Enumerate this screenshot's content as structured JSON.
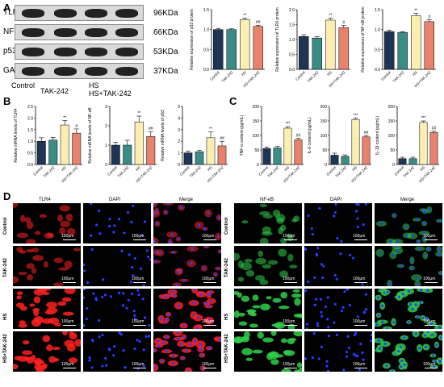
{
  "panels": {
    "A": "A",
    "B": "B",
    "C": "C",
    "D": "D"
  },
  "western_blot": {
    "rows": [
      {
        "protein": "TLR4",
        "kda": "96KDa"
      },
      {
        "protein": "NF-κB",
        "kda": "66KDa"
      },
      {
        "protein": "p53",
        "kda": "53KDa"
      },
      {
        "protein": "GAPDH",
        "kda": "37KDa"
      }
    ],
    "lanes": [
      "Control",
      "TAK-242",
      "HS",
      "HS+TAK-242"
    ]
  },
  "colors": {
    "control": "#1f3557",
    "tak242": "#3a8c85",
    "hs": "#fbeeb0",
    "hs_tak242": "#e9826c",
    "tlr4_stain": "#ff2020",
    "nfkb_stain": "#2fcf4a",
    "dapi": "#2a3cff"
  },
  "chart_data": [
    {
      "id": "A1",
      "type": "bar",
      "categories": [
        "Control",
        "TAK-242",
        "HS",
        "HS+TAK-242"
      ],
      "values": [
        1.0,
        1.0,
        1.25,
        1.08
      ],
      "errors": [
        0.03,
        0.02,
        0.04,
        0.03
      ],
      "sig": [
        "",
        "",
        "**",
        "##"
      ],
      "ylabel": "Relative expression of p53 protein",
      "ylim": [
        0,
        1.5
      ],
      "yticks": [
        "0.0",
        "0.5",
        "1.0",
        "1.5"
      ]
    },
    {
      "id": "A2",
      "type": "bar",
      "categories": [
        "Control",
        "TAK-242",
        "HS",
        "HS+TAK-242"
      ],
      "values": [
        1.1,
        1.05,
        1.65,
        1.4
      ],
      "errors": [
        0.06,
        0.05,
        0.06,
        0.07
      ],
      "sig": [
        "",
        "",
        "**",
        "#"
      ],
      "ylabel": "Relative expression of TLR4 protein",
      "ylim": [
        0,
        2.0
      ],
      "yticks": [
        "0.0",
        "0.5",
        "1.0",
        "1.5",
        "2.0"
      ]
    },
    {
      "id": "A3",
      "type": "bar",
      "categories": [
        "Control",
        "TAK-242",
        "HS",
        "HS+TAK-242"
      ],
      "values": [
        0.95,
        0.93,
        1.35,
        1.2
      ],
      "errors": [
        0.03,
        0.02,
        0.06,
        0.05
      ],
      "sig": [
        "",
        "",
        "**",
        "#"
      ],
      "ylabel": "Relative expression of NF-κB protein",
      "ylim": [
        0,
        1.5
      ],
      "yticks": [
        "0.0",
        "0.5",
        "1.0",
        "1.5"
      ]
    },
    {
      "id": "B1",
      "type": "bar",
      "categories": [
        "Control",
        "TAK-242",
        "HS",
        "HS+TAK-242"
      ],
      "values": [
        1.0,
        1.05,
        1.7,
        1.35
      ],
      "errors": [
        0.15,
        0.12,
        0.2,
        0.18
      ],
      "sig": [
        "",
        "",
        "**",
        "#"
      ],
      "ylabel": "Relative mRNA levels of TLR4",
      "ylim": [
        0,
        2.5
      ],
      "yticks": [
        "0.0",
        "0.5",
        "1.0",
        "1.5",
        "2.0",
        "2.5"
      ]
    },
    {
      "id": "B2",
      "type": "bar",
      "categories": [
        "Control",
        "TAK-242",
        "HS",
        "HS+TAK-242"
      ],
      "values": [
        1.0,
        1.0,
        2.2,
        1.45
      ],
      "errors": [
        0.15,
        0.25,
        0.3,
        0.25
      ],
      "sig": [
        "",
        "",
        "**",
        "##"
      ],
      "ylabel": "Relative mRNA levels of NF-κB",
      "ylim": [
        0,
        3
      ],
      "yticks": [
        "0",
        "1",
        "2",
        "3"
      ]
    },
    {
      "id": "B3",
      "type": "bar",
      "categories": [
        "Control",
        "TAK-242",
        "HS",
        "HS+TAK-242"
      ],
      "values": [
        1.0,
        1.1,
        2.3,
        1.6
      ],
      "errors": [
        0.15,
        0.1,
        0.5,
        0.4
      ],
      "sig": [
        "",
        "",
        "**",
        "##"
      ],
      "ylabel": "Relative mRNA levels of p53",
      "ylim": [
        0,
        5
      ],
      "yticks": [
        "0",
        "1",
        "2",
        "3",
        "4",
        "5"
      ]
    },
    {
      "id": "C1",
      "type": "bar",
      "categories": [
        "Control",
        "TAK-242",
        "HS",
        "HS+TAK-242"
      ],
      "values": [
        55,
        57,
        125,
        85
      ],
      "errors": [
        5,
        5,
        5,
        5
      ],
      "sig": [
        "",
        "",
        "***",
        "##"
      ],
      "ylabel": "TNF-α content (pg/mL)",
      "ylim": [
        0,
        200
      ],
      "yticks": [
        "0",
        "50",
        "100",
        "150",
        "200"
      ]
    },
    {
      "id": "C2",
      "type": "bar",
      "categories": [
        "Control",
        "TAK-242",
        "HS",
        "HS+TAK-242"
      ],
      "values": [
        32,
        28,
        155,
        95
      ],
      "errors": [
        7,
        5,
        5,
        5
      ],
      "sig": [
        "",
        "",
        "***",
        "##"
      ],
      "ylabel": "IL-6 content (pg/mL)",
      "ylim": [
        0,
        200
      ],
      "yticks": [
        "0",
        "50",
        "100",
        "150",
        "200"
      ]
    },
    {
      "id": "C3",
      "type": "bar",
      "categories": [
        "Control",
        "TAK-242",
        "HS",
        "HS+TAK-242"
      ],
      "values": [
        20,
        20,
        145,
        110
      ],
      "errors": [
        5,
        5,
        5,
        5
      ],
      "sig": [
        "",
        "",
        "***",
        "##"
      ],
      "ylabel": "IL-1β content (pg/mL)",
      "ylim": [
        0,
        200
      ],
      "yticks": [
        "0",
        "50",
        "100",
        "150",
        "200"
      ]
    }
  ],
  "microscopy": {
    "left": {
      "columns": [
        "TLR4",
        "DAPI",
        "Merge"
      ],
      "stain": "red"
    },
    "right": {
      "columns": [
        "NF-κB",
        "DAPI",
        "Merge"
      ],
      "stain": "green"
    },
    "rows": [
      "Control",
      "TAK-242",
      "HS",
      "HS+TAK-242"
    ],
    "scale": "100μm"
  }
}
